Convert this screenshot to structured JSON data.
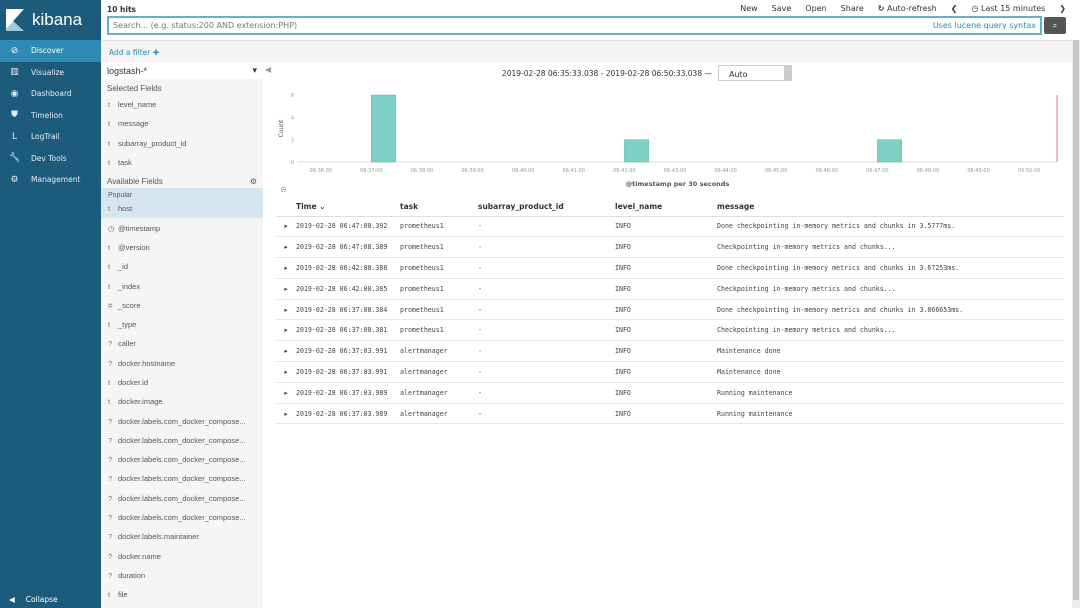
{
  "app": {
    "name": "kibana",
    "nav": [
      {
        "label": "Discover",
        "icon": "compass-icon",
        "active": true
      },
      {
        "label": "Visualize",
        "icon": "bar-chart-icon"
      },
      {
        "label": "Dashboard",
        "icon": "dashboard-icon"
      },
      {
        "label": "Timelion",
        "icon": "shield-icon"
      },
      {
        "label": "LogTrail",
        "icon": "logtrail-icon"
      },
      {
        "label": "Dev Tools",
        "icon": "wrench-icon"
      },
      {
        "label": "Management",
        "icon": "gear-icon"
      }
    ],
    "collapse": "Collapse"
  },
  "top": {
    "hits": "10 hits",
    "menu": [
      "New",
      "Save",
      "Open",
      "Share",
      "Auto-refresh",
      "Last 15 minutes"
    ],
    "search_placeholder": "Search... (e.g. status:200 AND extension:PHP)",
    "search_hint": "Uses lucene query syntax"
  },
  "filter": {
    "add": "Add a filter ✚"
  },
  "fields": {
    "index": "logstash-*",
    "selected_title": "Selected Fields",
    "selected": [
      {
        "t": "t",
        "n": "level_name"
      },
      {
        "t": "t",
        "n": "message"
      },
      {
        "t": "t",
        "n": "subarray_product_id"
      },
      {
        "t": "t",
        "n": "task"
      }
    ],
    "available_title": "Available Fields",
    "popular_title": "Popular",
    "popular": [
      {
        "t": "t",
        "n": "host"
      }
    ],
    "available": [
      {
        "t": "◷",
        "n": "@timestamp"
      },
      {
        "t": "t",
        "n": "@version"
      },
      {
        "t": "t",
        "n": "_id"
      },
      {
        "t": "t",
        "n": "_index"
      },
      {
        "t": "#",
        "n": "_score"
      },
      {
        "t": "t",
        "n": "_type"
      },
      {
        "t": "?",
        "n": "caller"
      },
      {
        "t": "?",
        "n": "docker.hostname"
      },
      {
        "t": "t",
        "n": "docker.id"
      },
      {
        "t": "t",
        "n": "docker.image"
      },
      {
        "t": "?",
        "n": "docker.labels.com_docker_compose..."
      },
      {
        "t": "?",
        "n": "docker.labels.com_docker_compose..."
      },
      {
        "t": "?",
        "n": "docker.labels.com_docker_compose..."
      },
      {
        "t": "?",
        "n": "docker.labels.com_docker_compose..."
      },
      {
        "t": "?",
        "n": "docker.labels.com_docker_compose..."
      },
      {
        "t": "?",
        "n": "docker.labels.com_docker_compose..."
      },
      {
        "t": "?",
        "n": "docker.labels.maintainer"
      },
      {
        "t": "?",
        "n": "docker.name"
      },
      {
        "t": "?",
        "n": "duration"
      },
      {
        "t": "t",
        "n": "file"
      }
    ]
  },
  "histogram": {
    "range": "2019-02-28 06:35:33.038 - 2019-02-28 06:50:33.038 —",
    "interval": "Auto"
  },
  "chart_data": {
    "type": "bar",
    "ylabel": "Count",
    "xlabel": "@timestamp per 30 seconds",
    "ylim": [
      0,
      6
    ],
    "yticks": [
      0,
      2,
      4,
      6
    ],
    "xticks": [
      "06:36:00",
      "06:37:00",
      "06:38:00",
      "06:39:00",
      "06:40:00",
      "06:41:00",
      "06:42:00",
      "06:43:00",
      "06:44:00",
      "06:45:00",
      "06:46:00",
      "06:47:00",
      "06:48:00",
      "06:49:00",
      "06:50:00"
    ],
    "bars": [
      {
        "x": "06:37:00",
        "value": 6
      },
      {
        "x": "06:42:00",
        "value": 2
      },
      {
        "x": "06:47:00",
        "value": 2
      }
    ],
    "color": "#7fd1c8",
    "now_marker_color": "#e0556a"
  },
  "table": {
    "columns": [
      "Time ⌄",
      "task",
      "subarray_product_id",
      "level_name",
      "message"
    ],
    "rows": [
      [
        "2019-02-28 06:47:08.392",
        "prometheus1",
        "-",
        "INFO",
        "Done checkpointing in-memory metrics and chunks in 3.5777ms."
      ],
      [
        "2019-02-28 06:47:08.389",
        "prometheus1",
        "-",
        "INFO",
        "Checkpointing in-memory metrics and chunks..."
      ],
      [
        "2019-02-28 06:42:08.388",
        "prometheus1",
        "-",
        "INFO",
        "Done checkpointing in-memory metrics and chunks in 3.67253ms."
      ],
      [
        "2019-02-28 06:42:08.385",
        "prometheus1",
        "-",
        "INFO",
        "Checkpointing in-memory metrics and chunks..."
      ],
      [
        "2019-02-28 06:37:08.384",
        "prometheus1",
        "-",
        "INFO",
        "Done checkpointing in-memory metrics and chunks in 3.866653ms."
      ],
      [
        "2019-02-28 06:37:08.381",
        "prometheus1",
        "-",
        "INFO",
        "Checkpointing in-memory metrics and chunks..."
      ],
      [
        "2019-02-28 06:37:03.991",
        "alertmanager",
        "-",
        "INFO",
        "Maintenance done"
      ],
      [
        "2019-02-28 06:37:03.991",
        "alertmanager",
        "-",
        "INFO",
        "Maintenance done"
      ],
      [
        "2019-02-28 06:37:03.989",
        "alertmanager",
        "-",
        "INFO",
        "Running maintenance"
      ],
      [
        "2019-02-28 06:37:03.989",
        "alertmanager",
        "-",
        "INFO",
        "Running maintenance"
      ]
    ]
  }
}
